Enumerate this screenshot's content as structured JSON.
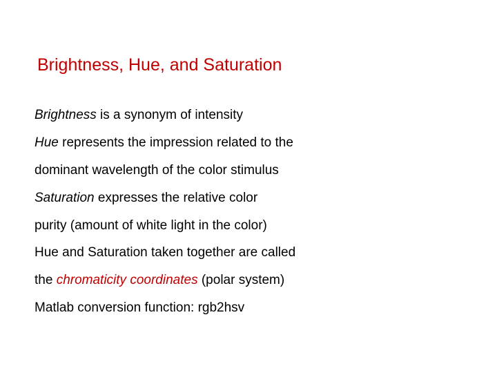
{
  "slide": {
    "title": "Brightness, Hue, and Saturation",
    "lines": {
      "l1a": "Brightness",
      "l1b": " is a synonym of intensity",
      "l2a": "Hue",
      "l2b": " represents the impression related to the",
      "l3": "dominant wavelength of the color stimulus",
      "l4a": "Saturation",
      "l4b": " expresses the relative color",
      "l5": "purity (amount of white light in the color)",
      "l6": "Hue and Saturation taken together are called",
      "l7a": "the ",
      "l7b": "chromaticity coordinates",
      "l7c": " (polar system)",
      "l8": "Matlab conversion function: rgb2hsv"
    },
    "colors": {
      "title_color": "#c00000",
      "text_color": "#000000",
      "highlight_color": "#c00000",
      "background": "#ffffff"
    },
    "typography": {
      "title_fontsize": 25,
      "body_fontsize": 19,
      "font_family": "Arial"
    }
  }
}
